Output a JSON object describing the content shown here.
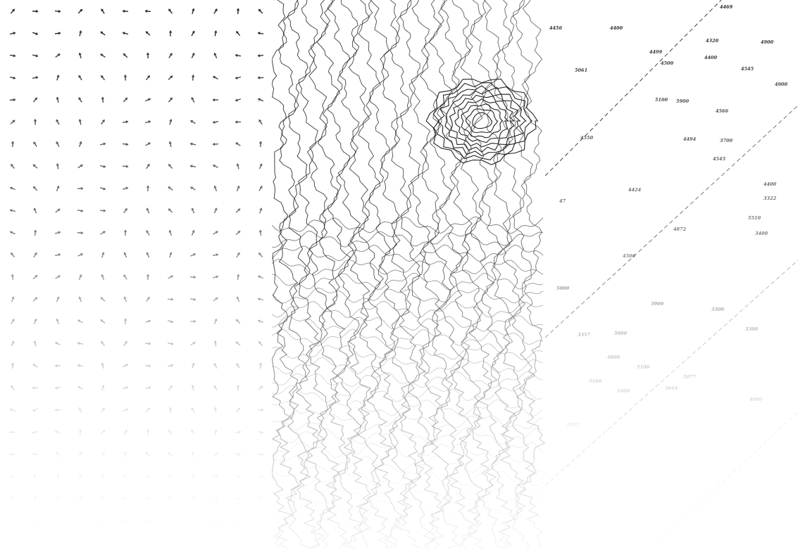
{
  "colors": {
    "ink": "#222222",
    "background": "#ffffff"
  },
  "panels": {
    "vector_field": {
      "icon": "arrow-glyph-grid"
    },
    "contours": {
      "icon": "contour-lines"
    },
    "spot_heights": {
      "icon": "elevation-labels",
      "labels": [
        "4469",
        "4400",
        "4456",
        "4499",
        "4320",
        "4900",
        "5061",
        "4500",
        "4400",
        "4545",
        "4900",
        "5100",
        "5900",
        "4566",
        "4550",
        "4494",
        "3700",
        "4545",
        "4400",
        "3322",
        "47",
        "4424",
        "5510",
        "4872",
        "3400",
        "4500",
        "5000",
        "3900",
        "3300",
        "3357",
        "5000",
        "3300",
        "4800",
        "5100",
        "3100",
        "5077",
        "5044",
        "5400",
        "4000",
        "3317"
      ]
    }
  }
}
